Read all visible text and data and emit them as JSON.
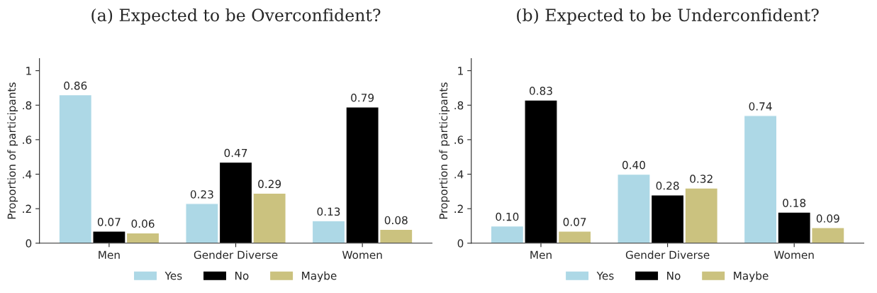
{
  "chart_data": [
    {
      "type": "bar",
      "title": "(a) Expected to be Overconfident?",
      "ylabel": "Proportion of participants",
      "categories": [
        "Men",
        "Gender Diverse",
        "Women"
      ],
      "ylim": [
        0,
        1.07
      ],
      "yticks": [
        {
          "value": 0,
          "label": "0"
        },
        {
          "value": 0.2,
          "label": ".2"
        },
        {
          "value": 0.4,
          "label": ".4"
        },
        {
          "value": 0.6,
          "label": ".6"
        },
        {
          "value": 0.8,
          "label": ".8"
        },
        {
          "value": 1,
          "label": "1"
        }
      ],
      "legend": "bottom",
      "grid": false,
      "series": [
        {
          "name": "Yes",
          "color": "#add8e6",
          "values": [
            0.86,
            0.23,
            0.13
          ],
          "value_labels": [
            "0.86",
            "0.23",
            "0.13"
          ]
        },
        {
          "name": "No",
          "color": "#000000",
          "values": [
            0.07,
            0.47,
            0.79
          ],
          "value_labels": [
            "0.07",
            "0.47",
            "0.79"
          ]
        },
        {
          "name": "Maybe",
          "color": "#cbc27f",
          "values": [
            0.06,
            0.29,
            0.08
          ],
          "value_labels": [
            "0.06",
            "0.29",
            "0.08"
          ]
        }
      ]
    },
    {
      "type": "bar",
      "title": "(b) Expected to be Underconfident?",
      "ylabel": "Proportion of participants",
      "categories": [
        "Men",
        "Gender Diverse",
        "Women"
      ],
      "ylim": [
        0,
        1.07
      ],
      "yticks": [
        {
          "value": 0,
          "label": "0"
        },
        {
          "value": 0.2,
          "label": ".2"
        },
        {
          "value": 0.4,
          "label": ".4"
        },
        {
          "value": 0.6,
          "label": ".6"
        },
        {
          "value": 0.8,
          "label": ".8"
        },
        {
          "value": 1,
          "label": "1"
        }
      ],
      "legend": "bottom",
      "grid": false,
      "series": [
        {
          "name": "Yes",
          "color": "#add8e6",
          "values": [
            0.1,
            0.4,
            0.74
          ],
          "value_labels": [
            "0.10",
            "0.40",
            "0.74"
          ]
        },
        {
          "name": "No",
          "color": "#000000",
          "values": [
            0.83,
            0.28,
            0.18
          ],
          "value_labels": [
            "0.83",
            "0.28",
            "0.18"
          ]
        },
        {
          "name": "Maybe",
          "color": "#cbc27f",
          "values": [
            0.07,
            0.32,
            0.09
          ],
          "value_labels": [
            "0.07",
            "0.32",
            "0.09"
          ]
        }
      ]
    }
  ]
}
